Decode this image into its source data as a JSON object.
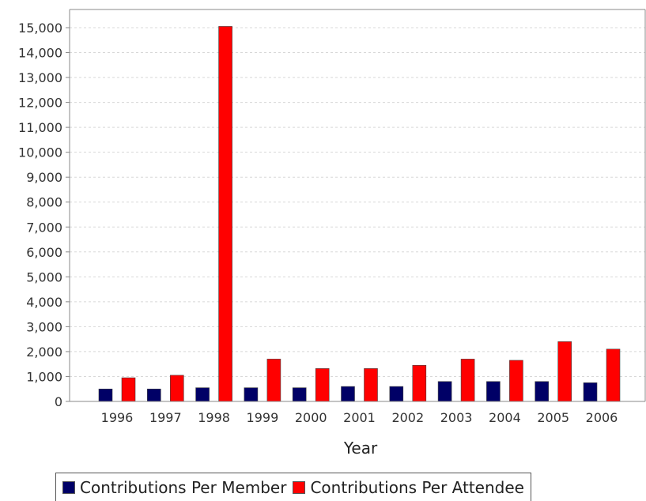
{
  "chart_data": {
    "type": "bar",
    "title": "",
    "xlabel": "Year",
    "ylabel": "",
    "ylim": [
      0,
      15000
    ],
    "yticks": [
      0,
      1000,
      2000,
      3000,
      4000,
      5000,
      6000,
      7000,
      8000,
      9000,
      10000,
      11000,
      12000,
      13000,
      14000,
      15000
    ],
    "ytick_labels": [
      "0",
      "1,000",
      "2,000",
      "3,000",
      "4,000",
      "5,000",
      "6,000",
      "7,000",
      "8,000",
      "9,000",
      "10,000",
      "11,000",
      "12,000",
      "13,000",
      "14,000",
      "15,000"
    ],
    "grid": true,
    "legend_position": "bottom",
    "categories": [
      "1996",
      "1997",
      "1998",
      "1999",
      "2000",
      "2001",
      "2002",
      "2003",
      "2004",
      "2005",
      "2006"
    ],
    "series": [
      {
        "name": "Contributions Per Member",
        "color": "#000066",
        "values": [
          500,
          500,
          550,
          550,
          550,
          600,
          600,
          800,
          800,
          800,
          750
        ]
      },
      {
        "name": "Contributions Per Attendee",
        "color": "#ff0000",
        "values": [
          950,
          1050,
          15050,
          1700,
          1320,
          1320,
          1450,
          1700,
          1650,
          2400,
          2100
        ]
      }
    ]
  }
}
